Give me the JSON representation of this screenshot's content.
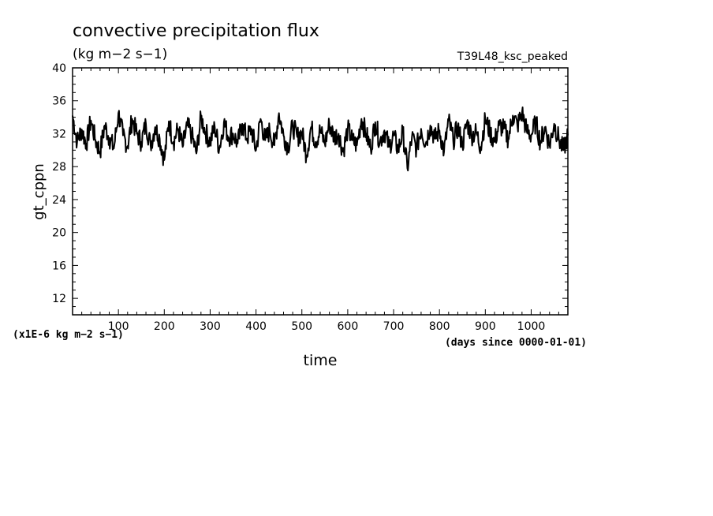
{
  "chart_data": {
    "type": "line",
    "title": "convective precipitation flux",
    "units": "(kg m−2 s−1)",
    "experiment": "T39L48_ksc_peaked",
    "xlabel": "time",
    "x_units": "(days since 0000-01-01)",
    "ylabel": "gt_cppn",
    "y_scale_note": "(x1E-6 kg m−2 s−1)",
    "xlim": [
      0,
      1080
    ],
    "ylim": [
      10,
      40
    ],
    "x_major_ticks": [
      100,
      200,
      300,
      400,
      500,
      600,
      700,
      800,
      900,
      1000
    ],
    "x_tick_labels": [
      "100",
      "200",
      "300",
      "400",
      "500",
      "600",
      "700",
      "800",
      "900",
      "1000"
    ],
    "y_major_ticks": [
      12,
      16,
      20,
      24,
      28,
      32,
      36,
      40
    ],
    "y_tick_labels": [
      "12",
      "16",
      "20",
      "24",
      "28",
      "32",
      "36",
      "40"
    ],
    "grid": false,
    "series": [
      {
        "color": "#000000",
        "x": [
          0,
          10,
          20,
          30,
          40,
          50,
          60,
          70,
          80,
          90,
          100,
          110,
          120,
          130,
          140,
          150,
          160,
          170,
          180,
          190,
          200,
          210,
          220,
          230,
          240,
          250,
          260,
          270,
          280,
          290,
          300,
          310,
          320,
          330,
          340,
          350,
          360,
          370,
          380,
          390,
          400,
          410,
          420,
          430,
          440,
          450,
          460,
          470,
          480,
          490,
          500,
          510,
          520,
          530,
          540,
          550,
          560,
          570,
          580,
          590,
          600,
          610,
          620,
          630,
          640,
          650,
          660,
          670,
          680,
          690,
          700,
          710,
          720,
          730,
          740,
          750,
          760,
          770,
          780,
          790,
          800,
          810,
          820,
          830,
          840,
          850,
          860,
          870,
          880,
          890,
          900,
          910,
          920,
          930,
          940,
          950,
          960,
          970,
          980,
          990,
          1000,
          1010,
          1020,
          1030,
          1040,
          1050,
          1060,
          1070,
          1080
        ],
        "y": [
          34.2,
          31.0,
          32.5,
          30.8,
          33.6,
          31.2,
          29.8,
          33.0,
          31.5,
          30.2,
          34.5,
          31.8,
          30.5,
          33.8,
          32.0,
          31.0,
          33.2,
          30.6,
          32.8,
          31.4,
          28.8,
          33.5,
          31.0,
          32.6,
          30.4,
          33.0,
          31.8,
          29.6,
          34.0,
          32.2,
          31.0,
          32.8,
          30.2,
          33.4,
          31.6,
          32.0,
          30.8,
          33.2,
          31.4,
          32.6,
          30.0,
          33.8,
          31.2,
          32.4,
          30.6,
          34.5,
          31.8,
          30.4,
          33.0,
          31.6,
          32.2,
          29.4,
          32.8,
          31.0,
          32.4,
          30.8,
          33.2,
          31.6,
          32.0,
          29.8,
          32.6,
          31.2,
          30.6,
          33.8,
          32.0,
          30.2,
          33.4,
          31.0,
          32.4,
          30.4,
          31.8,
          30.0,
          32.2,
          27.8,
          31.6,
          30.2,
          32.6,
          30.8,
          33.0,
          31.4,
          32.4,
          29.8,
          33.6,
          31.2,
          32.8,
          30.6,
          33.4,
          31.8,
          32.2,
          30.4,
          33.8,
          32.2,
          31.0,
          33.0,
          32.6,
          31.4,
          34.2,
          33.0,
          34.6,
          32.4,
          31.8,
          33.4,
          31.0,
          32.8,
          30.6,
          33.2,
          31.4,
          30.0,
          31.8
        ]
      }
    ]
  }
}
